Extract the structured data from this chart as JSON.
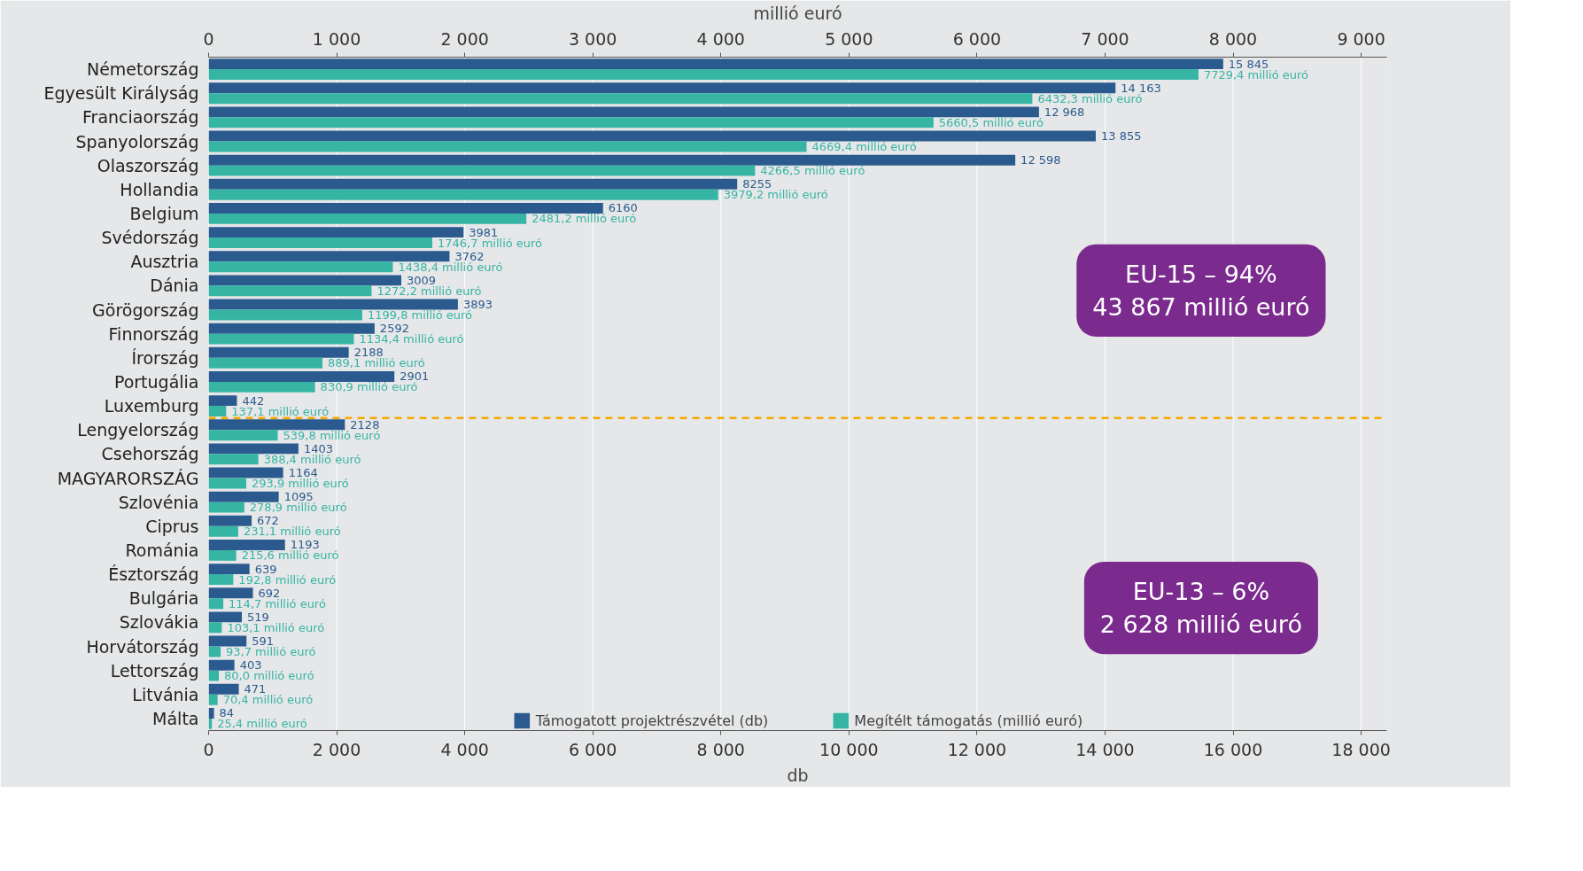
{
  "chart_data": {
    "type": "bar",
    "orientation": "horizontal",
    "xlabel": "db",
    "x2label": "millió euró",
    "categories": [
      "Németország",
      "Egyesült Királyság",
      "Franciaország",
      "Spanyolország",
      "Olaszország",
      "Hollandia",
      "Belgium",
      "Svédország",
      "Ausztria",
      "Dánia",
      "Görögország",
      "Finnország",
      "Írország",
      "Portugália",
      "Luxemburg",
      "Lengyelország",
      "Csehország",
      "MAGYARORSZÁG",
      "Szlovénia",
      "Ciprus",
      "Románia",
      "Észtország",
      "Bulgária",
      "Szlovákia",
      "Horvátország",
      "Lettország",
      "Litvánia",
      "Málta"
    ],
    "series": [
      {
        "name": "Támogatott projektrészvétel (db)",
        "color": "#2b5b8e",
        "values": [
          15845,
          14163,
          12968,
          13855,
          12598,
          8255,
          6160,
          3981,
          3762,
          3009,
          3893,
          2592,
          2188,
          2901,
          442,
          2128,
          1403,
          1164,
          1095,
          672,
          1193,
          639,
          692,
          519,
          591,
          403,
          471,
          84
        ],
        "value_labels": [
          "15 845",
          "14 163",
          "12 968",
          "13 855",
          "12 598",
          "8255",
          "6160",
          "3981",
          "3762",
          "3009",
          "3893",
          "2592",
          "2188",
          "2901",
          "442",
          "2128",
          "1403",
          "1164",
          "1095",
          "672",
          "1193",
          "639",
          "692",
          "519",
          "591",
          "403",
          "471",
          "84"
        ]
      },
      {
        "name": "Megítélt támogatás (millió euró)",
        "color": "#36b5a5",
        "axis": "x2",
        "values": [
          7729.4,
          6432.3,
          5660.5,
          4669.4,
          4266.5,
          3979.2,
          2481.2,
          1746.7,
          1438.4,
          1272.2,
          1199.8,
          1134.4,
          889.1,
          830.9,
          137.1,
          539.8,
          388.4,
          293.9,
          278.9,
          231.1,
          215.6,
          192.8,
          114.7,
          103.1,
          93.7,
          80.0,
          70.4,
          25.4
        ],
        "value_labels": [
          "7729,4 millió euró",
          "6432,3 millió euró",
          "5660,5 millió euró",
          "4669,4 millió euró",
          "4266,5 millió euró",
          "3979,2 millió euró",
          "2481,2 millió euró",
          "1746,7 millió euró",
          "1438,4 millió euró",
          "1272,2 millió euró",
          "1199,8 millió euró",
          "1134,4 millió euró",
          "889,1 millió euró",
          "830,9 millió euró",
          "137,1 millió euró",
          "539,8 millió euró",
          "388,4 millió euró",
          "293,9 millió euró",
          "278,9 millió euró",
          "231,1 millió euró",
          "215,6 millió euró",
          "192,8 millió euró",
          "114,7 millió euró",
          "103,1 millió euró",
          "93,7 millió euró",
          "80,0 millió euró",
          "70,4 millió euró",
          "25,4 millió euró"
        ]
      }
    ],
    "xlim": [
      0,
      18400
    ],
    "xticks": [
      0,
      {
        "value": 2000,
        "label": "2 000"
      },
      {
        "value": 4000,
        "label": "4 000"
      },
      {
        "value": 6000,
        "label": "6 000"
      },
      {
        "value": 8000,
        "label": "8 000"
      },
      {
        "value": 10000,
        "label": "10 000"
      },
      {
        "value": 12000,
        "label": "12 000"
      },
      {
        "value": 14000,
        "label": "14 000"
      },
      {
        "value": 16000,
        "label": "16 000"
      },
      {
        "value": 18000,
        "label": "18 000"
      }
    ],
    "x2lim": [
      0,
      9200
    ],
    "x2ticks": [
      0,
      {
        "value": 1000,
        "label": "1 000"
      },
      {
        "value": 2000,
        "label": "2 000"
      },
      {
        "value": 3000,
        "label": "3 000"
      },
      {
        "value": 4000,
        "label": "4 000"
      },
      {
        "value": 5000,
        "label": "5 000"
      },
      {
        "value": 6000,
        "label": "6 000"
      },
      {
        "value": 7000,
        "label": "7 000"
      },
      {
        "value": 8000,
        "label": "8 000"
      },
      {
        "value": 9000,
        "label": "9 000"
      }
    ],
    "grid": "x2",
    "legend": "bottom",
    "ref_lines": [
      {
        "axis": "y",
        "value": "Luxemburg",
        "color": "#f5a800",
        "line_style": "dashed"
      }
    ],
    "annotations": [
      "EU-15 – 94%\n43 867 millió euró",
      "EU-13 – 6%\n2 628 millió euró"
    ]
  }
}
